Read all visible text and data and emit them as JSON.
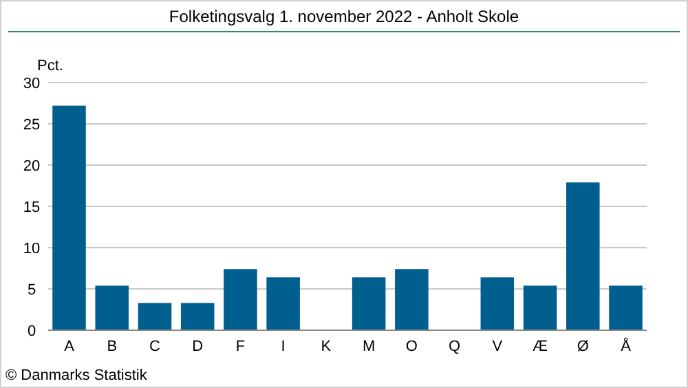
{
  "chart_data": {
    "type": "bar",
    "title": "Folketingsvalg 1. november 2022 - Anholt Skole",
    "ylabel": "Pct.",
    "categories": [
      "A",
      "B",
      "C",
      "D",
      "F",
      "I",
      "K",
      "M",
      "O",
      "Q",
      "V",
      "Æ",
      "Ø",
      "Å"
    ],
    "values": [
      27.2,
      5.4,
      3.3,
      3.3,
      7.4,
      6.4,
      0,
      6.4,
      7.4,
      0,
      6.4,
      5.4,
      17.9,
      5.4
    ],
    "color": "#005f8f",
    "ylim": [
      0,
      30
    ],
    "yticks": [
      0,
      5,
      10,
      15,
      20,
      25,
      30
    ],
    "grid": "y",
    "annotations": [
      "© Danmarks Statistik"
    ]
  }
}
